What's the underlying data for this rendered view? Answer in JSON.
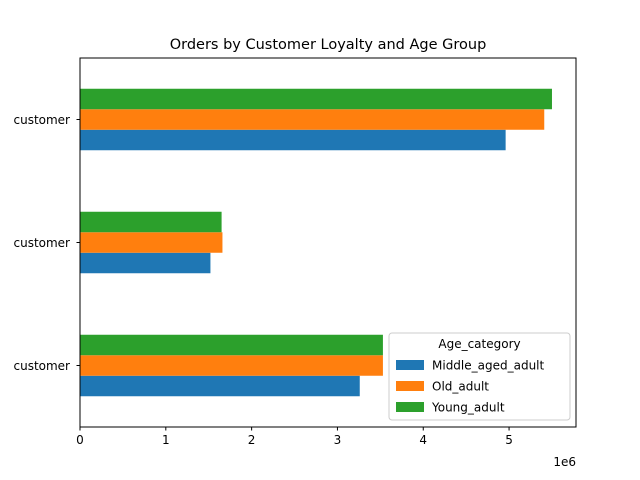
{
  "chart_data": {
    "type": "bar",
    "orientation": "horizontal",
    "title": "Orders by Customer Loyalty and Age Group",
    "xlabel": "",
    "ylabel": "",
    "x_scale_label": "1e6",
    "xlim": [
      0,
      5.78
    ],
    "x_ticks": [
      0,
      1,
      2,
      3,
      4,
      5
    ],
    "categories": [
      "customer",
      "customer",
      "customer"
    ],
    "category_order": "top-to-bottom",
    "series": [
      {
        "name": "Middle_aged_adult",
        "color": "#1f77b4",
        "values": [
          4.96,
          1.52,
          3.26
        ]
      },
      {
        "name": "Old_adult",
        "color": "#ff7f0e",
        "values": [
          5.41,
          1.66,
          3.53
        ]
      },
      {
        "name": "Young_adult",
        "color": "#2ca02c",
        "values": [
          5.5,
          1.65,
          3.53
        ]
      }
    ],
    "legend": {
      "title": "Age_category",
      "placement": "lower-right"
    },
    "grid": false
  }
}
